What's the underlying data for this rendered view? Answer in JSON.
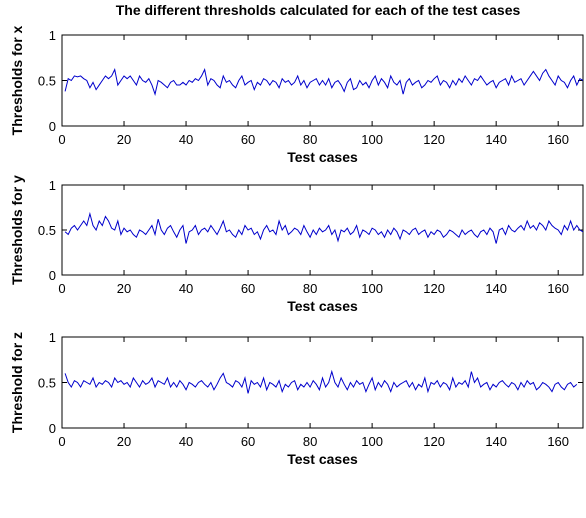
{
  "figure": {
    "title": "The different thresholds calculated for each of the test cases"
  },
  "colors": {
    "series": "#0000cc",
    "axes": "#000000",
    "background": "#ffffff"
  },
  "chart_data": [
    {
      "type": "line",
      "ylabel": "Thresholds for x",
      "xlabel": "Test cases",
      "xlim": [
        0,
        168
      ],
      "ylim": [
        0,
        1
      ],
      "xticks": [
        0,
        20,
        40,
        60,
        80,
        100,
        120,
        140,
        160
      ],
      "yticks": [
        0,
        0.5,
        1
      ],
      "grid": false,
      "series": [
        {
          "values": [
            0.38,
            0.52,
            0.5,
            0.55,
            0.54,
            0.55,
            0.52,
            0.5,
            0.42,
            0.48,
            0.4,
            0.45,
            0.5,
            0.55,
            0.52,
            0.55,
            0.62,
            0.45,
            0.5,
            0.55,
            0.52,
            0.55,
            0.5,
            0.45,
            0.55,
            0.5,
            0.48,
            0.52,
            0.45,
            0.35,
            0.5,
            0.48,
            0.45,
            0.42,
            0.48,
            0.5,
            0.45,
            0.45,
            0.48,
            0.45,
            0.5,
            0.48,
            0.52,
            0.5,
            0.55,
            0.62,
            0.45,
            0.52,
            0.5,
            0.45,
            0.42,
            0.55,
            0.48,
            0.5,
            0.45,
            0.42,
            0.5,
            0.55,
            0.45,
            0.48,
            0.5,
            0.4,
            0.48,
            0.45,
            0.52,
            0.5,
            0.45,
            0.5,
            0.48,
            0.42,
            0.52,
            0.48,
            0.5,
            0.45,
            0.48,
            0.55,
            0.45,
            0.5,
            0.42,
            0.48,
            0.5,
            0.52,
            0.45,
            0.5,
            0.45,
            0.52,
            0.42,
            0.48,
            0.5,
            0.45,
            0.38,
            0.48,
            0.52,
            0.4,
            0.42,
            0.5,
            0.45,
            0.48,
            0.42,
            0.5,
            0.55,
            0.45,
            0.52,
            0.48,
            0.42,
            0.55,
            0.48,
            0.45,
            0.5,
            0.35,
            0.48,
            0.52,
            0.45,
            0.48,
            0.5,
            0.42,
            0.45,
            0.5,
            0.48,
            0.52,
            0.55,
            0.45,
            0.5,
            0.48,
            0.42,
            0.5,
            0.45,
            0.52,
            0.48,
            0.55,
            0.5,
            0.45,
            0.52,
            0.5,
            0.55,
            0.5,
            0.45,
            0.48,
            0.5,
            0.42,
            0.48,
            0.5,
            0.52,
            0.45,
            0.55,
            0.48,
            0.5,
            0.52,
            0.45,
            0.5,
            0.55,
            0.6,
            0.55,
            0.5,
            0.58,
            0.62,
            0.55,
            0.5,
            0.45,
            0.55,
            0.5,
            0.48,
            0.42,
            0.5,
            0.55,
            0.45,
            0.52,
            0.5,
            0.48
          ]
        }
      ]
    },
    {
      "type": "line",
      "ylabel": "Thresholds for y",
      "xlabel": "Test cases",
      "xlim": [
        0,
        168
      ],
      "ylim": [
        0,
        1
      ],
      "xticks": [
        0,
        20,
        40,
        60,
        80,
        100,
        120,
        140,
        160
      ],
      "yticks": [
        0,
        0.5,
        1
      ],
      "grid": false,
      "series": [
        {
          "values": [
            0.48,
            0.45,
            0.52,
            0.55,
            0.5,
            0.55,
            0.6,
            0.55,
            0.68,
            0.55,
            0.5,
            0.6,
            0.55,
            0.65,
            0.6,
            0.52,
            0.5,
            0.6,
            0.45,
            0.52,
            0.48,
            0.5,
            0.45,
            0.42,
            0.5,
            0.48,
            0.45,
            0.5,
            0.55,
            0.45,
            0.62,
            0.5,
            0.45,
            0.52,
            0.55,
            0.48,
            0.42,
            0.5,
            0.55,
            0.35,
            0.48,
            0.5,
            0.55,
            0.45,
            0.5,
            0.52,
            0.48,
            0.55,
            0.5,
            0.45,
            0.52,
            0.6,
            0.48,
            0.5,
            0.45,
            0.42,
            0.5,
            0.45,
            0.55,
            0.5,
            0.52,
            0.45,
            0.48,
            0.4,
            0.5,
            0.55,
            0.48,
            0.5,
            0.45,
            0.6,
            0.5,
            0.55,
            0.45,
            0.48,
            0.52,
            0.5,
            0.45,
            0.55,
            0.48,
            0.42,
            0.5,
            0.45,
            0.52,
            0.48,
            0.5,
            0.55,
            0.45,
            0.5,
            0.38,
            0.5,
            0.48,
            0.52,
            0.45,
            0.48,
            0.55,
            0.42,
            0.5,
            0.48,
            0.45,
            0.52,
            0.5,
            0.45,
            0.48,
            0.42,
            0.5,
            0.45,
            0.52,
            0.48,
            0.4,
            0.5,
            0.48,
            0.45,
            0.5,
            0.52,
            0.45,
            0.48,
            0.5,
            0.42,
            0.48,
            0.45,
            0.5,
            0.48,
            0.42,
            0.45,
            0.5,
            0.48,
            0.45,
            0.42,
            0.5,
            0.45,
            0.48,
            0.5,
            0.45,
            0.42,
            0.48,
            0.5,
            0.45,
            0.52,
            0.48,
            0.35,
            0.5,
            0.52,
            0.45,
            0.55,
            0.5,
            0.48,
            0.52,
            0.55,
            0.5,
            0.6,
            0.52,
            0.55,
            0.5,
            0.58,
            0.55,
            0.5,
            0.6,
            0.55,
            0.52,
            0.5,
            0.45,
            0.55,
            0.5,
            0.6,
            0.5,
            0.55,
            0.5,
            0.48
          ]
        }
      ]
    },
    {
      "type": "line",
      "ylabel": "Threshold for z",
      "xlabel": "Test cases",
      "xlim": [
        0,
        168
      ],
      "ylim": [
        0,
        1
      ],
      "xticks": [
        0,
        20,
        40,
        60,
        80,
        100,
        120,
        140,
        160
      ],
      "yticks": [
        0,
        0.5,
        1
      ],
      "grid": false,
      "series": [
        {
          "values": [
            0.6,
            0.5,
            0.45,
            0.52,
            0.5,
            0.45,
            0.52,
            0.5,
            0.48,
            0.55,
            0.45,
            0.5,
            0.48,
            0.52,
            0.5,
            0.45,
            0.55,
            0.5,
            0.52,
            0.48,
            0.5,
            0.45,
            0.55,
            0.5,
            0.45,
            0.52,
            0.48,
            0.5,
            0.55,
            0.45,
            0.52,
            0.5,
            0.48,
            0.55,
            0.45,
            0.5,
            0.45,
            0.52,
            0.48,
            0.42,
            0.5,
            0.48,
            0.45,
            0.5,
            0.52,
            0.48,
            0.45,
            0.5,
            0.42,
            0.48,
            0.55,
            0.6,
            0.5,
            0.48,
            0.45,
            0.52,
            0.5,
            0.45,
            0.55,
            0.38,
            0.52,
            0.48,
            0.5,
            0.45,
            0.55,
            0.42,
            0.5,
            0.48,
            0.45,
            0.52,
            0.4,
            0.48,
            0.45,
            0.5,
            0.52,
            0.42,
            0.48,
            0.45,
            0.5,
            0.45,
            0.52,
            0.48,
            0.42,
            0.55,
            0.45,
            0.5,
            0.62,
            0.5,
            0.45,
            0.55,
            0.48,
            0.42,
            0.5,
            0.45,
            0.52,
            0.48,
            0.5,
            0.4,
            0.48,
            0.55,
            0.42,
            0.5,
            0.45,
            0.52,
            0.48,
            0.4,
            0.5,
            0.45,
            0.48,
            0.5,
            0.52,
            0.45,
            0.5,
            0.42,
            0.48,
            0.45,
            0.55,
            0.4,
            0.5,
            0.48,
            0.52,
            0.45,
            0.5,
            0.48,
            0.42,
            0.55,
            0.45,
            0.5,
            0.48,
            0.52,
            0.45,
            0.62,
            0.5,
            0.55,
            0.45,
            0.48,
            0.5,
            0.42,
            0.48,
            0.45,
            0.5,
            0.52,
            0.48,
            0.45,
            0.5,
            0.48,
            0.42,
            0.5,
            0.45,
            0.52,
            0.48,
            0.5,
            0.42,
            0.45,
            0.5,
            0.48,
            0.45,
            0.4,
            0.48,
            0.5,
            0.45,
            0.42,
            0.48,
            0.5,
            0.45,
            0.48
          ]
        }
      ]
    }
  ]
}
